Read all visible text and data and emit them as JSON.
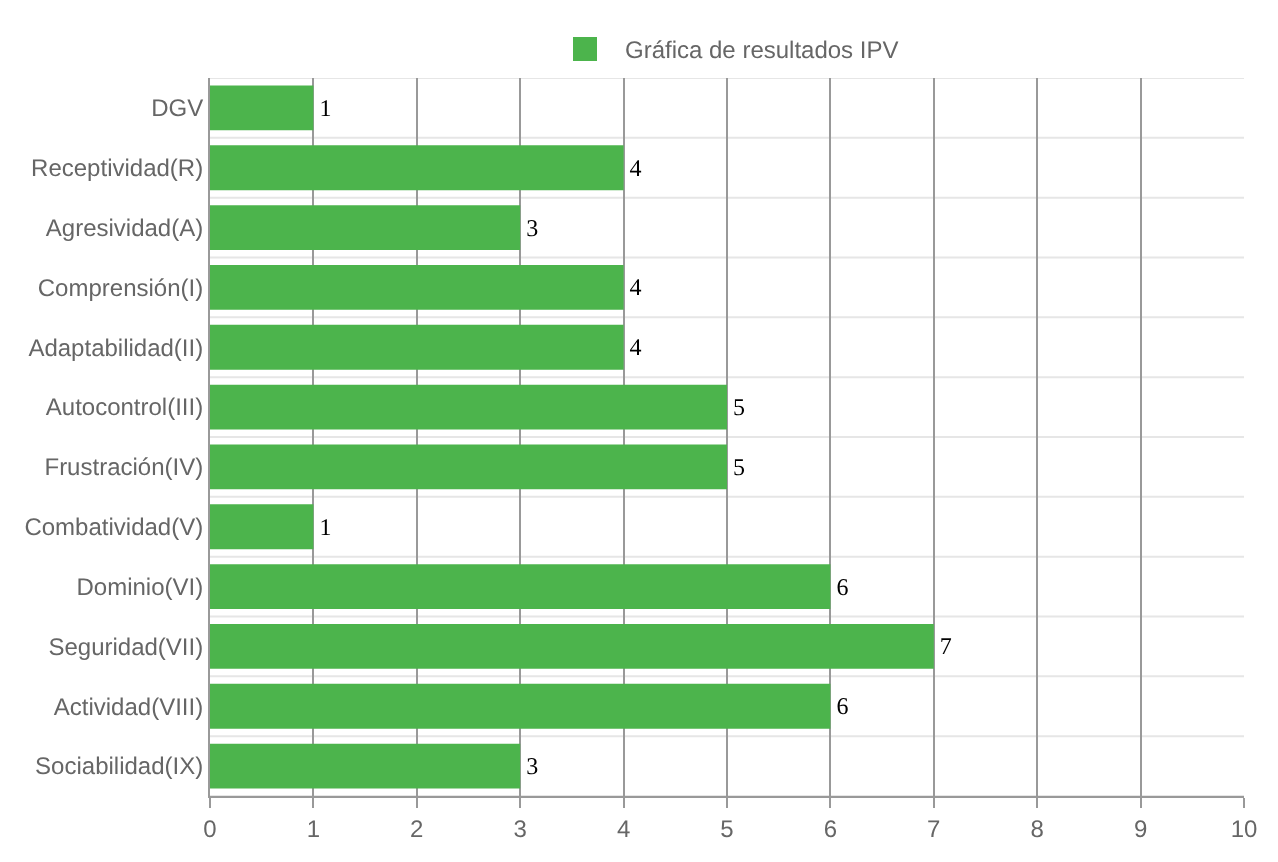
{
  "chart_data": {
    "type": "bar",
    "orientation": "horizontal",
    "categories": [
      "DGV",
      "Receptividad(R)",
      "Agresividad(A)",
      "Comprensión(I)",
      "Adaptabilidad(II)",
      "Autocontrol(III)",
      "Frustración(IV)",
      "Combatividad(V)",
      "Dominio(VI)",
      "Seguridad(VII)",
      "Actividad(VIII)",
      "Sociabilidad(IX)"
    ],
    "series": [
      {
        "name": "Gráfica de resultados IPV",
        "color": "#4cb44c",
        "values": [
          1,
          4,
          3,
          4,
          4,
          5,
          5,
          1,
          6,
          7,
          6,
          3
        ]
      }
    ],
    "xlim": [
      0,
      10
    ],
    "xticks": [
      0,
      1,
      2,
      3,
      4,
      5,
      6,
      7,
      8,
      9,
      10
    ],
    "grid": true,
    "legend": "top",
    "data_labels": true
  }
}
